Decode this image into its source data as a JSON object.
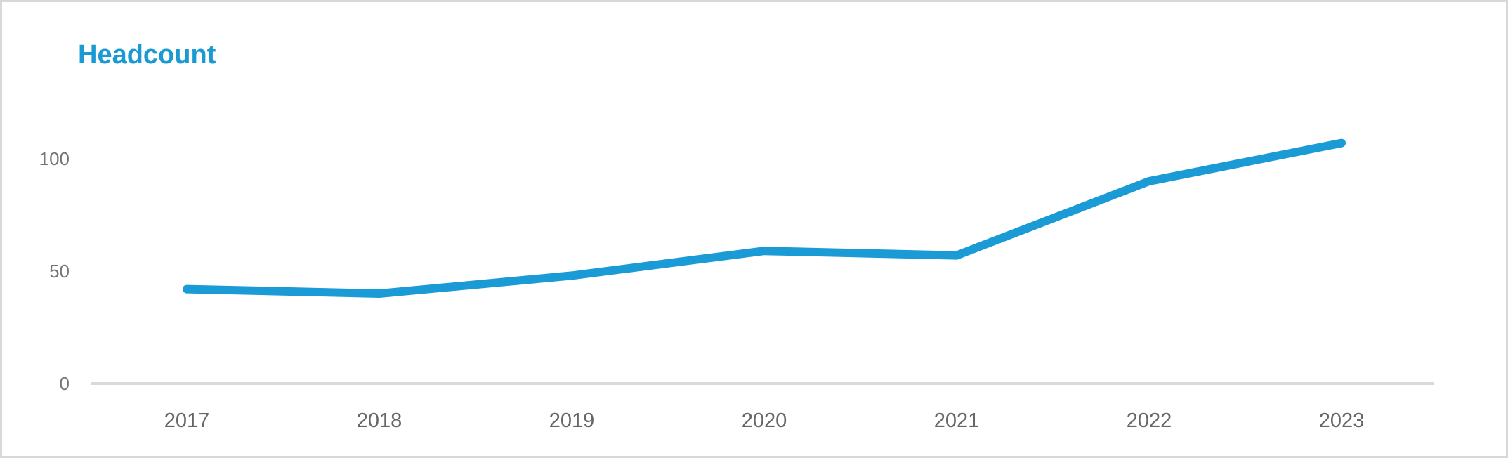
{
  "chart_data": {
    "type": "line",
    "title": "Headcount",
    "categories": [
      "2017",
      "2018",
      "2019",
      "2020",
      "2021",
      "2022",
      "2023"
    ],
    "series": [
      {
        "name": "Headcount",
        "values": [
          42,
          40,
          48,
          59,
          57,
          90,
          107
        ]
      }
    ],
    "xlabel": "",
    "ylabel": "",
    "y_ticks": [
      0,
      50,
      100
    ],
    "ylim": [
      0,
      115
    ],
    "grid": false,
    "legend": "none",
    "colors": {
      "line": "#1B9BD6",
      "title": "#1B9AD2",
      "y_tick_label": "#767676",
      "x_tick_label": "#666666",
      "axis_baseline": "#D9D9D9",
      "background": "#FFFFFF",
      "card_border": "#D8D8D8"
    }
  }
}
